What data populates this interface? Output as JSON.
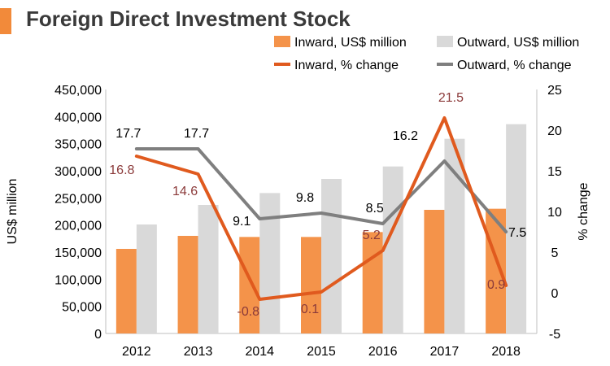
{
  "title": "Foreign Direct Investment Stock",
  "colors": {
    "inward_bar": "#f4934a",
    "outward_bar": "#d9d9d9",
    "inward_line": "#e05a1e",
    "outward_line": "#7f7f7f",
    "accent": "#f28a3a",
    "inward_label": "#8b3a3a",
    "outward_label": "#000000"
  },
  "chart_data": {
    "type": "bar",
    "title": "Foreign Direct Investment Stock",
    "categories": [
      "2012",
      "2013",
      "2014",
      "2015",
      "2016",
      "2017",
      "2018"
    ],
    "ylabel": "US$ million",
    "y2label": "% change",
    "ylim": [
      0,
      450000
    ],
    "y2lim": [
      -5,
      25
    ],
    "yticks": [
      "0",
      "50,000",
      "100,000",
      "150,000",
      "200,000",
      "250,000",
      "300,000",
      "350,000",
      "400,000",
      "450,000"
    ],
    "y2ticks": [
      "-5",
      "0",
      "5",
      "10",
      "15",
      "20",
      "25"
    ],
    "series": [
      {
        "name": "Inward, US$ million",
        "type": "bar",
        "axis": "left",
        "values": [
          156000,
          180000,
          178000,
          178000,
          187000,
          228000,
          230000
        ]
      },
      {
        "name": "Outward, US$ million",
        "type": "bar",
        "axis": "left",
        "values": [
          201000,
          237000,
          259000,
          285000,
          308000,
          359000,
          386000
        ]
      },
      {
        "name": "Inward, % change",
        "type": "line",
        "axis": "right",
        "values": [
          16.8,
          14.6,
          -0.8,
          0.1,
          5.2,
          21.5,
          0.9
        ],
        "labels": [
          "16.8",
          "14.6",
          "-0.8",
          "0.1",
          "5.2",
          "21.5",
          "0.9"
        ]
      },
      {
        "name": "Outward, % change",
        "type": "line",
        "axis": "right",
        "values": [
          17.7,
          17.7,
          9.1,
          9.8,
          8.5,
          16.2,
          7.5
        ],
        "labels": [
          "17.7",
          "17.7",
          "9.1",
          "9.8",
          "8.5",
          "16.2",
          "7.5"
        ]
      }
    ],
    "legend": {
      "inward_bar": "Inward, US$ million",
      "outward_bar": "Outward, US$ million",
      "inward_line": "Inward, % change",
      "outward_line": "Outward, % change"
    }
  }
}
